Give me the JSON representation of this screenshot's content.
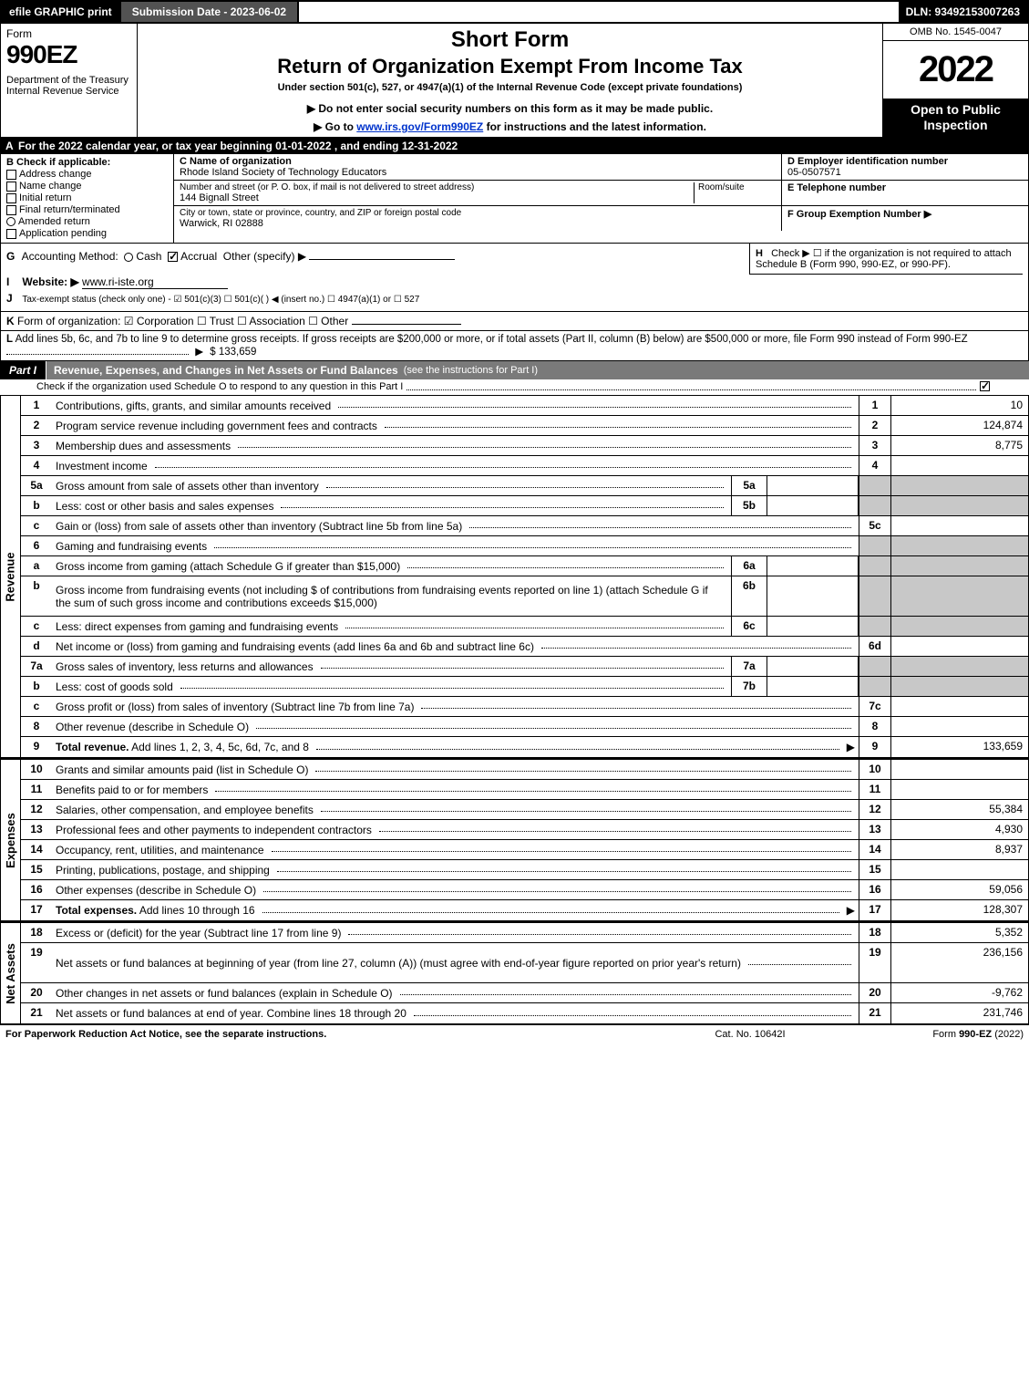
{
  "topbar": {
    "efile": "efile GRAPHIC print",
    "subdate": "Submission Date - 2023-06-02",
    "dln": "DLN: 93492153007263"
  },
  "header": {
    "form_word": "Form",
    "form_num": "990EZ",
    "dept": "Department of the Treasury\nInternal Revenue Service",
    "short": "Short Form",
    "ret": "Return of Organization Exempt From Income Tax",
    "under": "Under section 501(c), 527, or 4947(a)(1) of the Internal Revenue Code (except private foundations)",
    "dn": "▶ Do not enter social security numbers on this form as it may be made public.",
    "goto_pre": "▶ Go to ",
    "goto_link": "www.irs.gov/Form990EZ",
    "goto_post": " for instructions and the latest information.",
    "omb": "OMB No. 1545-0047",
    "year": "2022",
    "inspect": "Open to Public Inspection"
  },
  "lineA": "For the 2022 calendar year, or tax year beginning 01-01-2022 , and ending 12-31-2022",
  "B": {
    "hdr": "Check if applicable:",
    "opts": [
      "Address change",
      "Name change",
      "Initial return",
      "Final return/terminated",
      "Amended return",
      "Application pending"
    ]
  },
  "C": {
    "name_lbl": "C Name of organization",
    "name": "Rhode Island Society of Technology Educators",
    "street_lbl": "Number and street (or P. O. box, if mail is not delivered to street address)",
    "room_lbl": "Room/suite",
    "street": "144 Bignall Street",
    "city_lbl": "City or town, state or province, country, and ZIP or foreign postal code",
    "city": "Warwick, RI  02888"
  },
  "D": {
    "lbl": "D Employer identification number",
    "val": "05-0507571"
  },
  "E": {
    "lbl": "E Telephone number",
    "val": ""
  },
  "F": {
    "lbl": "F Group Exemption Number  ▶",
    "val": ""
  },
  "G": {
    "lbl": "Accounting Method:",
    "cash": "Cash",
    "accrual": "Accrual",
    "other": "Other (specify) ▶"
  },
  "H": "Check ▶  ☐  if the organization is not required to attach Schedule B (Form 990, 990-EZ, or 990-PF).",
  "I": {
    "lbl": "Website: ▶",
    "val": "www.ri-iste.org"
  },
  "J": "Tax-exempt status (check only one) - ☑ 501(c)(3)  ☐ 501(c)(  ) ◀ (insert no.)  ☐ 4947(a)(1) or  ☐ 527",
  "K": "Form of organization:  ☑ Corporation  ☐ Trust  ☐ Association  ☐ Other",
  "L": {
    "text": "Add lines 5b, 6c, and 7b to line 9 to determine gross receipts. If gross receipts are $200,000 or more, or if total assets (Part II, column (B) below) are $500,000 or more, file Form 990 instead of Form 990-EZ",
    "amount": "$ 133,659"
  },
  "partI": {
    "tab": "Part I",
    "title": "Revenue, Expenses, and Changes in Net Assets or Fund Balances",
    "sub": "(see the instructions for Part I)",
    "row2": "Check if the organization used Schedule O to respond to any question in this Part I"
  },
  "revenue_rows": [
    {
      "n": "1",
      "desc": "Contributions, gifts, grants, and similar amounts received",
      "ln": "1",
      "amt": "10"
    },
    {
      "n": "2",
      "desc": "Program service revenue including government fees and contracts",
      "ln": "2",
      "amt": "124,874"
    },
    {
      "n": "3",
      "desc": "Membership dues and assessments",
      "ln": "3",
      "amt": "8,775"
    },
    {
      "n": "4",
      "desc": "Investment income",
      "ln": "4",
      "amt": ""
    },
    {
      "n": "5a",
      "desc": "Gross amount from sale of assets other than inventory",
      "sub": "5a",
      "subval": "",
      "shade": true
    },
    {
      "n": "b",
      "desc": "Less: cost or other basis and sales expenses",
      "sub": "5b",
      "subval": "",
      "shade": true
    },
    {
      "n": "c",
      "desc": "Gain or (loss) from sale of assets other than inventory (Subtract line 5b from line 5a)",
      "ln": "5c",
      "amt": ""
    },
    {
      "n": "6",
      "desc": "Gaming and fundraising events",
      "shade": true,
      "noL": true
    },
    {
      "n": "a",
      "desc": "Gross income from gaming (attach Schedule G if greater than $15,000)",
      "sub": "6a",
      "subval": "",
      "shade": true
    },
    {
      "n": "b",
      "desc": "Gross income from fundraising events (not including $                of contributions from fundraising events reported on line 1) (attach Schedule G if the sum of such gross income and contributions exceeds $15,000)",
      "sub": "6b",
      "subval": "",
      "shade": true,
      "tall": true
    },
    {
      "n": "c",
      "desc": "Less: direct expenses from gaming and fundraising events",
      "sub": "6c",
      "subval": "",
      "shade": true
    },
    {
      "n": "d",
      "desc": "Net income or (loss) from gaming and fundraising events (add lines 6a and 6b and subtract line 6c)",
      "ln": "6d",
      "amt": ""
    },
    {
      "n": "7a",
      "desc": "Gross sales of inventory, less returns and allowances",
      "sub": "7a",
      "subval": "",
      "shade": true
    },
    {
      "n": "b",
      "desc": "Less: cost of goods sold",
      "sub": "7b",
      "subval": "",
      "shade": true
    },
    {
      "n": "c",
      "desc": "Gross profit or (loss) from sales of inventory (Subtract line 7b from line 7a)",
      "ln": "7c",
      "amt": ""
    },
    {
      "n": "8",
      "desc": "Other revenue (describe in Schedule O)",
      "ln": "8",
      "amt": ""
    },
    {
      "n": "9",
      "desc": "Total revenue. Add lines 1, 2, 3, 4, 5c, 6d, 7c, and 8",
      "ln": "9",
      "amt": "133,659",
      "bold": true,
      "arrow": true
    }
  ],
  "expense_rows": [
    {
      "n": "10",
      "desc": "Grants and similar amounts paid (list in Schedule O)",
      "ln": "10",
      "amt": ""
    },
    {
      "n": "11",
      "desc": "Benefits paid to or for members",
      "ln": "11",
      "amt": ""
    },
    {
      "n": "12",
      "desc": "Salaries, other compensation, and employee benefits",
      "ln": "12",
      "amt": "55,384"
    },
    {
      "n": "13",
      "desc": "Professional fees and other payments to independent contractors",
      "ln": "13",
      "amt": "4,930"
    },
    {
      "n": "14",
      "desc": "Occupancy, rent, utilities, and maintenance",
      "ln": "14",
      "amt": "8,937"
    },
    {
      "n": "15",
      "desc": "Printing, publications, postage, and shipping",
      "ln": "15",
      "amt": ""
    },
    {
      "n": "16",
      "desc": "Other expenses (describe in Schedule O)",
      "ln": "16",
      "amt": "59,056"
    },
    {
      "n": "17",
      "desc": "Total expenses. Add lines 10 through 16",
      "ln": "17",
      "amt": "128,307",
      "bold": true,
      "arrow": true
    }
  ],
  "netasset_rows": [
    {
      "n": "18",
      "desc": "Excess or (deficit) for the year (Subtract line 17 from line 9)",
      "ln": "18",
      "amt": "5,352"
    },
    {
      "n": "19",
      "desc": "Net assets or fund balances at beginning of year (from line 27, column (A)) (must agree with end-of-year figure reported on prior year's return)",
      "ln": "19",
      "amt": "236,156",
      "tall": true
    },
    {
      "n": "20",
      "desc": "Other changes in net assets or fund balances (explain in Schedule O)",
      "ln": "20",
      "amt": "-9,762"
    },
    {
      "n": "21",
      "desc": "Net assets or fund balances at end of year. Combine lines 18 through 20",
      "ln": "21",
      "amt": "231,746"
    }
  ],
  "sections": {
    "revenue": "Revenue",
    "expenses": "Expenses",
    "netassets": "Net Assets"
  },
  "footer": {
    "l": "For Paperwork Reduction Act Notice, see the separate instructions.",
    "c": "Cat. No. 10642I",
    "r": "Form 990-EZ (2022)"
  },
  "colors": {
    "black": "#000000",
    "darkgrey": "#525252",
    "midgrey": "#7a7a7a",
    "shade": "#c8c8c8",
    "link": "#0033cc"
  }
}
